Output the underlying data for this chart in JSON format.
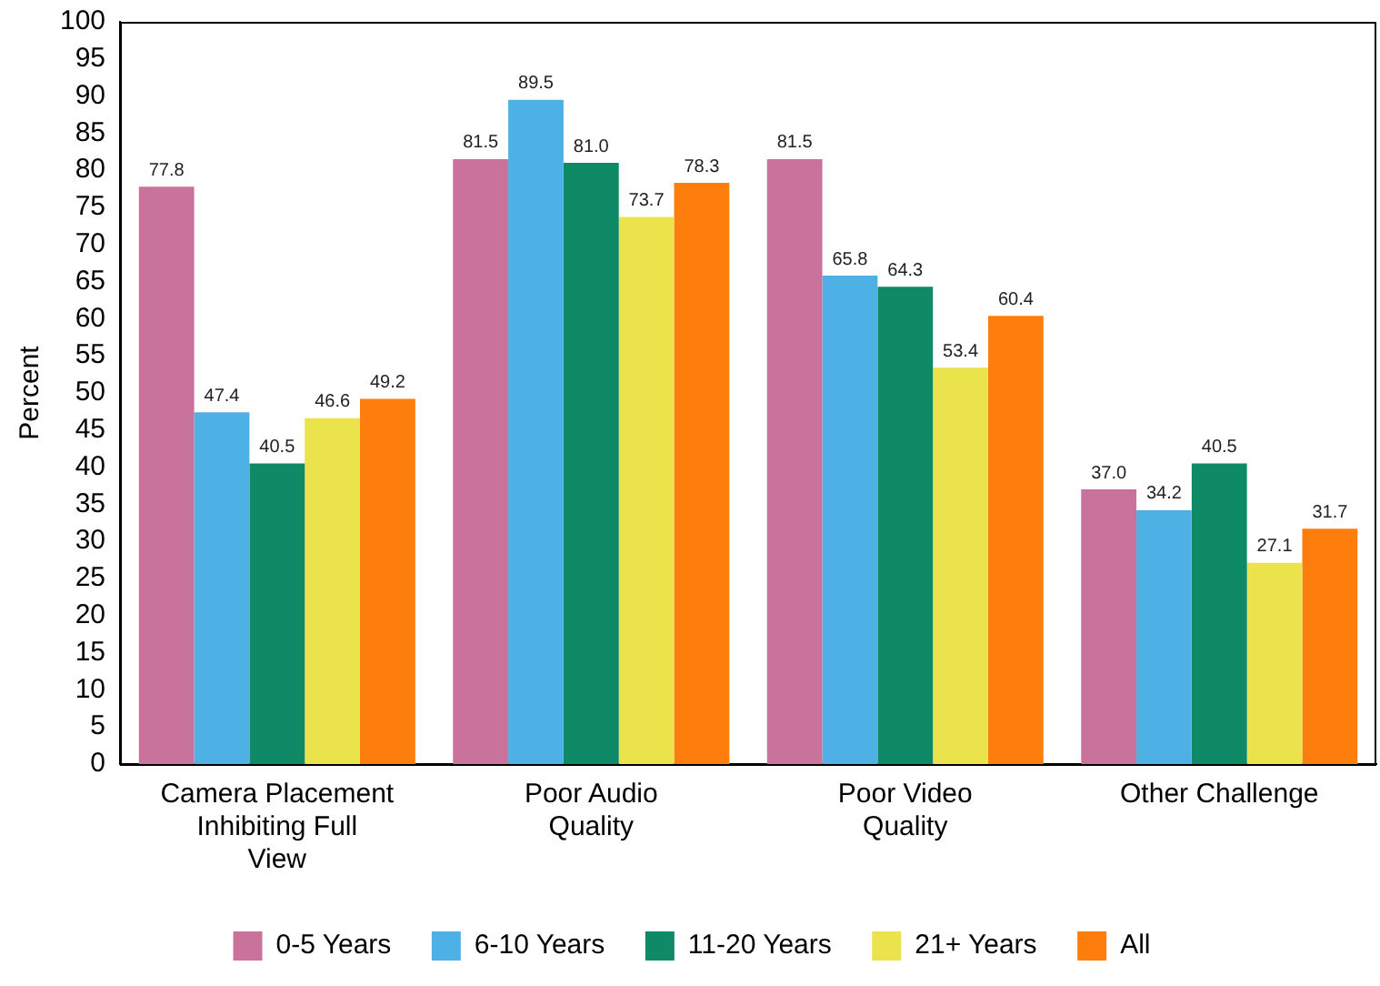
{
  "chart_data": {
    "type": "bar",
    "ylabel": "Percent",
    "categories": [
      "Camera Placement Inhibiting Full View",
      "Poor Audio Quality",
      "Poor Video Quality",
      "Other Challenge"
    ],
    "series": [
      {
        "name": "0-5 Years",
        "color": "#c9739c",
        "values": [
          77.8,
          81.5,
          81.5,
          37.0
        ],
        "value_labels": [
          "77.8",
          "81.5",
          "81.5",
          "37.0"
        ]
      },
      {
        "name": "6-10 Years",
        "color": "#4eb1e6",
        "values": [
          47.4,
          89.5,
          65.8,
          34.2
        ],
        "value_labels": [
          "47.4",
          "89.5",
          "65.8",
          "34.2"
        ]
      },
      {
        "name": "11-20 Years",
        "color": "#0e8a66",
        "values": [
          40.5,
          81.0,
          64.3,
          40.5
        ],
        "value_labels": [
          "40.5",
          "81.0",
          "64.3",
          "40.5"
        ]
      },
      {
        "name": "21+ Years",
        "color": "#ebe34c",
        "values": [
          46.6,
          73.7,
          53.4,
          27.1
        ],
        "value_labels": [
          "46.6",
          "73.7",
          "53.4",
          "27.1"
        ]
      },
      {
        "name": "All",
        "color": "#fd7d0d",
        "values": [
          49.2,
          78.3,
          60.4,
          31.7
        ],
        "value_labels": [
          "49.2",
          "78.3",
          "60.4",
          "31.7"
        ]
      }
    ],
    "ylim": [
      0,
      100
    ],
    "yticks": [
      0,
      5,
      10,
      15,
      20,
      25,
      30,
      35,
      40,
      45,
      50,
      55,
      60,
      65,
      70,
      75,
      80,
      85,
      90,
      95,
      100
    ],
    "grid": false,
    "legend": "bottom"
  }
}
